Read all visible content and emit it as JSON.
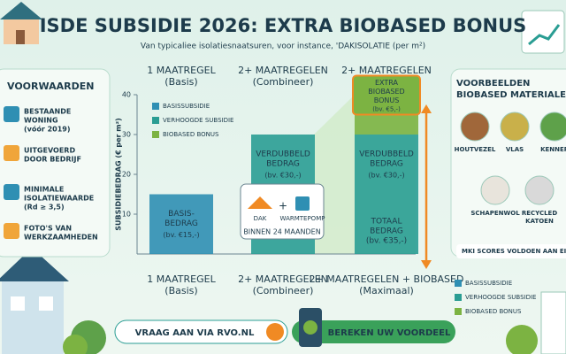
{
  "header": {
    "title": "ISDE SUBSIDIE 2026: EXTRA BIOBASED BONUS",
    "subtitle": "Van typicaliee isolatiesnaatsuren, voor instance, 'DAKISOLATIE (per m²)"
  },
  "conditions": {
    "title": "VOORWAARDEN",
    "items": [
      [
        "BESTAANDE",
        "WONING",
        "(vóór 2019)"
      ],
      [
        "UITGEVOERD",
        "DOOR BEDRIJF"
      ],
      [
        "MINIMALE",
        "ISOLATIEWAARDE",
        "(Rd ≥ 3,5)"
      ],
      [
        "FOTO'S VAN",
        "WERKZAAMHEDEN"
      ]
    ]
  },
  "materials": {
    "title": [
      "VOORBEELDEN",
      "BIOBASED MATERIALEN"
    ],
    "items": [
      [
        "HOUTVEZEL"
      ],
      [
        "VLAS"
      ],
      [
        "KENNEP"
      ],
      [
        "SCHAPENWOL"
      ],
      [
        "RECYCLED",
        "KATOEN"
      ]
    ],
    "note": "MKI SCORES VOLDOEN AAN EISEN"
  },
  "chart_data": {
    "type": "bar",
    "stacked": true,
    "headers": [
      [
        "1 MAATREGEL",
        "(Basis)"
      ],
      [
        "2+ MAATREGELEN",
        "(Combineer)"
      ],
      [
        "2+ MAATREGELEN",
        "(Maximaal)"
      ]
    ],
    "categories": [
      [
        "1 MAATREGEL",
        "(Basis)"
      ],
      [
        "2+ MAATREGELEN",
        "(Combineer)"
      ],
      [
        "2+ MAATREGELEN + BIOBASED",
        "(Maximaal)"
      ]
    ],
    "y_label": "SUBSIDIEBEDRAG (€ per m²)",
    "ylim": [
      0,
      40
    ],
    "yticks": [
      10,
      20,
      30,
      40
    ],
    "series": [
      {
        "name": "BASISSUBSIDIE",
        "color": "#2f8fb3",
        "values": [
          15,
          null,
          null
        ],
        "labels": [
          [
            "BASIS-",
            "BEDRAG"
          ],
          null,
          null
        ],
        "value_labels": [
          "(bv. €15,-)",
          null,
          null
        ]
      },
      {
        "name": "VERHOOGDE SUBSIDIE",
        "color": "#2a9d93",
        "values": [
          null,
          30,
          30
        ],
        "labels": [
          null,
          [
            "VERDUBBELD",
            "BEDRAG"
          ],
          [
            "VERDUBBELD",
            "BEDRAG"
          ]
        ],
        "value_labels": [
          null,
          "(bv. €30,-)",
          "(bv. €30,-)"
        ]
      },
      {
        "name": "BIOBASED BONUS",
        "color": "#7cb342",
        "values": [
          null,
          null,
          5
        ],
        "labels": [
          null,
          null,
          [
            "EXTRA",
            "BIOBASED",
            "BONUS"
          ]
        ],
        "value_labels": [
          null,
          null,
          "(bv. €5,-)"
        ]
      }
    ],
    "total": [
      "TOTAAL",
      "BEDRAG",
      "(bv. €35,-)"
    ],
    "callout": {
      "items": [
        "DAK",
        "WARMTEPOMP"
      ],
      "text": "BINNEN 24 MAANDEN"
    }
  },
  "actions": {
    "apply": "VRAAG AAN VIA RVO.NL",
    "calculate": "BEREKEN UW VOORDEEL"
  }
}
